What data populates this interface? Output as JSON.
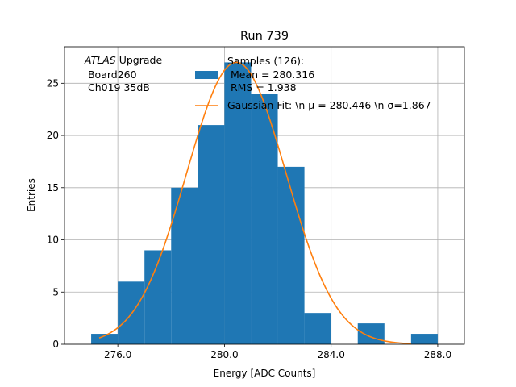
{
  "chart_data": {
    "type": "bar",
    "title": "Run 739",
    "xlabel": "Energy [ADC Counts]",
    "ylabel": "Entries",
    "xlim": [
      274.0,
      289.0
    ],
    "ylim": [
      0,
      28.5
    ],
    "xticks": [
      276.0,
      280.0,
      284.0,
      288.0
    ],
    "xtick_labels": [
      "276.0",
      "280.0",
      "284.0",
      "288.0"
    ],
    "yticks": [
      0,
      5,
      10,
      15,
      20,
      25
    ],
    "ytick_labels": [
      "0",
      "5",
      "10",
      "15",
      "20",
      "25"
    ],
    "grid": true,
    "bin_edges": [
      275,
      276,
      277,
      278,
      279,
      280,
      281,
      282,
      283,
      284,
      285,
      286,
      287,
      288
    ],
    "counts": [
      1,
      6,
      9,
      15,
      21,
      27,
      24,
      17,
      3,
      0,
      2,
      0,
      1
    ],
    "fit": {
      "mu": 280.446,
      "sigma": 1.867,
      "amplitude": 27,
      "x_range": [
        275.3,
        287.0
      ]
    },
    "series": [
      {
        "name": "Samples (126):\n Mean = 280.316\n RMS = 1.938",
        "type": "bar",
        "color": "#1f77b4"
      },
      {
        "name": "Gaussian Fit: \\n $\\mu$ = 280.446 \\n $\\sigma$=1.867",
        "type": "line",
        "color": "#ff7f0e"
      }
    ],
    "annotation": {
      "atlas": "ATLAS",
      "upgrade": " Upgrade",
      "line2": " Board260",
      "line3": " Ch019 35dB"
    },
    "legend": {
      "placement": "top-right",
      "samples_lines": [
        "Samples (126):",
        " Mean = 280.316",
        " RMS = 1.938"
      ],
      "fit_label": "Gaussian Fit: \\n μ = 280.446 \\n σ=1.867"
    }
  }
}
